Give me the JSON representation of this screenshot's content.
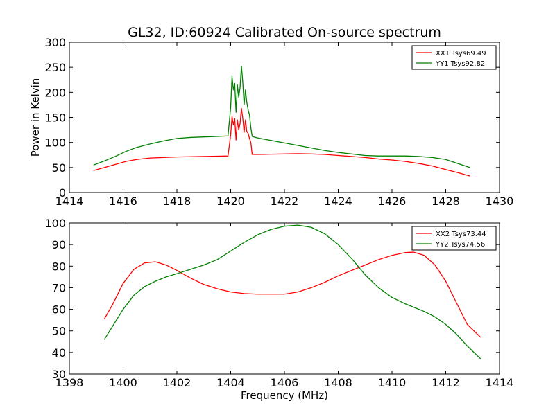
{
  "figure_title": "GL32, ID:60924 Calibrated On-source spectrum",
  "chart_data": [
    {
      "type": "line",
      "title": "GL32, ID:60924 Calibrated On-source spectrum",
      "xlabel": "",
      "ylabel": "Power in Kelvin",
      "xlim": [
        1414,
        1430
      ],
      "ylim": [
        0,
        300
      ],
      "xticks": [
        "1414",
        "1416",
        "1418",
        "1420",
        "1422",
        "1424",
        "1426",
        "1428",
        "1430"
      ],
      "yticks": [
        "0",
        "50",
        "100",
        "150",
        "200",
        "250",
        "300"
      ],
      "grid": false,
      "legend_position": "top-right",
      "series": [
        {
          "name": "XX1 Tsys69.49",
          "color": "#ff0000",
          "x": [
            1414.9,
            1415.3,
            1415.7,
            1416.1,
            1416.5,
            1417.0,
            1417.5,
            1418.0,
            1418.5,
            1419.0,
            1419.5,
            1419.9,
            1420.0,
            1420.05,
            1420.1,
            1420.15,
            1420.2,
            1420.25,
            1420.3,
            1420.35,
            1420.4,
            1420.45,
            1420.5,
            1420.55,
            1420.6,
            1420.65,
            1420.7,
            1420.75,
            1420.8,
            1421.0,
            1421.5,
            1422.0,
            1422.5,
            1423.0,
            1423.5,
            1424.0,
            1424.5,
            1425.0,
            1425.5,
            1426.0,
            1426.5,
            1427.0,
            1427.5,
            1428.0,
            1428.5,
            1428.9
          ],
          "y": [
            44,
            50,
            56,
            62,
            66,
            69,
            70,
            71,
            71.5,
            72,
            72.5,
            73,
            115,
            152,
            135,
            148,
            105,
            145,
            125,
            138,
            168,
            148,
            120,
            145,
            122,
            118,
            108,
            100,
            76,
            76,
            76.5,
            77,
            77.5,
            77,
            76,
            74,
            72,
            70,
            67,
            65,
            62,
            58,
            53,
            46,
            39,
            33
          ]
        },
        {
          "name": "YY1 Tsys92.82",
          "color": "#008000",
          "x": [
            1414.9,
            1415.3,
            1415.7,
            1416.1,
            1416.5,
            1417.0,
            1417.5,
            1418.0,
            1418.5,
            1419.0,
            1419.5,
            1419.9,
            1420.0,
            1420.05,
            1420.1,
            1420.15,
            1420.2,
            1420.25,
            1420.3,
            1420.35,
            1420.4,
            1420.45,
            1420.5,
            1420.55,
            1420.6,
            1420.65,
            1420.7,
            1420.75,
            1420.8,
            1421.0,
            1421.5,
            1422.0,
            1422.5,
            1423.0,
            1423.5,
            1424.0,
            1424.5,
            1425.0,
            1425.5,
            1426.0,
            1426.5,
            1427.0,
            1427.5,
            1428.0,
            1428.5,
            1428.9
          ],
          "y": [
            55,
            63,
            72,
            82,
            90,
            97,
            103,
            108,
            110,
            111,
            112,
            113,
            170,
            232,
            205,
            218,
            160,
            215,
            190,
            210,
            252,
            220,
            175,
            205,
            180,
            165,
            155,
            130,
            112,
            109,
            104,
            99,
            94,
            89,
            84,
            80,
            77,
            74,
            73,
            73,
            73,
            72,
            70,
            66,
            57,
            50
          ]
        }
      ]
    },
    {
      "type": "line",
      "title": "",
      "xlabel": "Frequency (MHz)",
      "ylabel": "",
      "xlim": [
        1398,
        1414
      ],
      "ylim": [
        30,
        100
      ],
      "xticks": [
        "1398",
        "1400",
        "1402",
        "1404",
        "1406",
        "1408",
        "1410",
        "1412",
        "1414"
      ],
      "yticks": [
        "30",
        "40",
        "50",
        "60",
        "70",
        "80",
        "90",
        "100"
      ],
      "grid": false,
      "legend_position": "top-right",
      "series": [
        {
          "name": "XX2 Tsys73.44",
          "color": "#ff0000",
          "x": [
            1399.3,
            1399.6,
            1400.0,
            1400.4,
            1400.8,
            1401.2,
            1401.6,
            1402.0,
            1402.5,
            1403.0,
            1403.5,
            1404.0,
            1404.5,
            1405.0,
            1405.5,
            1406.0,
            1406.5,
            1407.0,
            1407.5,
            1408.0,
            1408.5,
            1409.0,
            1409.5,
            1410.0,
            1410.5,
            1410.8,
            1411.2,
            1411.6,
            1412.0,
            1412.4,
            1412.8,
            1413.3
          ],
          "y": [
            55.5,
            62,
            72,
            78.5,
            81.5,
            82,
            80.5,
            78,
            74.5,
            71.5,
            69.5,
            68,
            67.3,
            67,
            67,
            67,
            68,
            70,
            72.5,
            75.5,
            78,
            80.5,
            83,
            85,
            86.3,
            86.5,
            85,
            80.5,
            73,
            63,
            53,
            47
          ]
        },
        {
          "name": "YY2 Tsys74.56",
          "color": "#008000",
          "x": [
            1399.3,
            1399.6,
            1400.0,
            1400.4,
            1400.8,
            1401.2,
            1401.6,
            1402.0,
            1402.5,
            1403.0,
            1403.5,
            1404.0,
            1404.5,
            1405.0,
            1405.5,
            1406.0,
            1406.5,
            1407.0,
            1407.5,
            1408.0,
            1408.5,
            1409.0,
            1409.5,
            1410.0,
            1410.5,
            1410.8,
            1411.2,
            1411.6,
            1412.0,
            1412.4,
            1412.8,
            1413.3
          ],
          "y": [
            46,
            52,
            60,
            66.5,
            70.5,
            73,
            75,
            76.5,
            78.5,
            80.5,
            83,
            87,
            91,
            94.5,
            97,
            98.5,
            99,
            98,
            95,
            90,
            83.5,
            76,
            70,
            65.5,
            62.5,
            61,
            59,
            56.5,
            53,
            48.5,
            43,
            37
          ]
        }
      ]
    }
  ]
}
